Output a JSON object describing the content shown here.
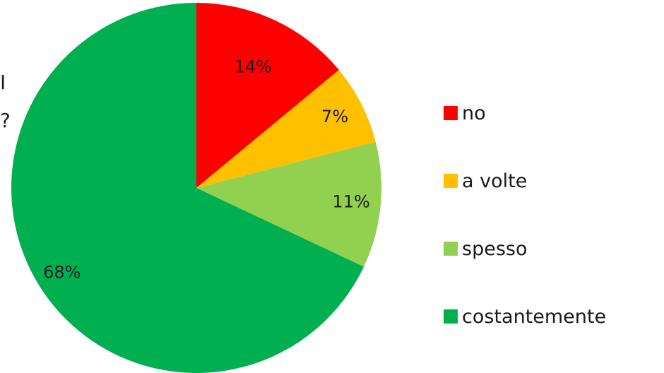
{
  "fragments": {
    "left_edge_top": "I",
    "left_edge_bottom": "?"
  },
  "chart_data": {
    "type": "pie",
    "title": "",
    "categories": [
      "no",
      "a volte",
      "spesso",
      "costantemente"
    ],
    "values": [
      14,
      7,
      11,
      68
    ],
    "labels": [
      "14%",
      "7%",
      "11%",
      "68%"
    ],
    "colors": [
      "#FF0000",
      "#FFC000",
      "#92D050",
      "#00B050"
    ],
    "start_angle_deg": 0,
    "direction": "clockwise",
    "legend_position": "right"
  }
}
